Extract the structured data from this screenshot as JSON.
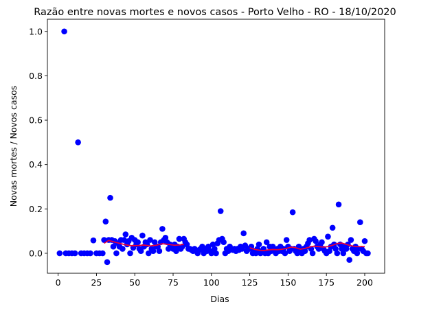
{
  "chart_data": {
    "type": "scatter",
    "title": "Razão entre novas mortes e novos casos - Porto Velho - RO - 18/10/2020",
    "xlabel": "Dias",
    "ylabel": "Novas mortes / Novos casos",
    "xlim": [
      -7,
      213
    ],
    "ylim": [
      -0.09,
      1.055
    ],
    "xticks": [
      0,
      25,
      50,
      75,
      100,
      125,
      150,
      175,
      200
    ],
    "yticks": [
      0.0,
      0.2,
      0.4,
      0.6,
      0.8,
      1.0
    ],
    "ytick_labels": [
      "0.0",
      "0.2",
      "0.4",
      "0.6",
      "0.8",
      "1.0"
    ],
    "grid": false,
    "scatter_color": "#0000ff",
    "line_color": "#e8003a",
    "series": [
      {
        "kind": "scatter",
        "points": [
          [
            1,
            0
          ],
          [
            4,
            1.0
          ],
          [
            5,
            0
          ],
          [
            7,
            0
          ],
          [
            9,
            0
          ],
          [
            11,
            0
          ],
          [
            13,
            0.5
          ],
          [
            15,
            0
          ],
          [
            17,
            0
          ],
          [
            19,
            0
          ],
          [
            21,
            0
          ],
          [
            23,
            0.058
          ],
          [
            25,
            0
          ],
          [
            27,
            0
          ],
          [
            29,
            0
          ],
          [
            30,
            0.06
          ],
          [
            31,
            0.143
          ],
          [
            32,
            -0.04
          ],
          [
            33,
            0.06
          ],
          [
            34,
            0.25
          ],
          [
            35,
            0.06
          ],
          [
            36,
            0.03
          ],
          [
            37,
            0.055
          ],
          [
            38,
            0.0
          ],
          [
            39,
            0.045
          ],
          [
            40,
            0.03
          ],
          [
            41,
            0.06
          ],
          [
            42,
            0.02
          ],
          [
            43,
            0.06
          ],
          [
            44,
            0.085
          ],
          [
            45,
            0.04
          ],
          [
            46,
            0.055
          ],
          [
            47,
            0.0
          ],
          [
            48,
            0.07
          ],
          [
            49,
            0.025
          ],
          [
            50,
            0.06
          ],
          [
            51,
            0.04
          ],
          [
            52,
            0.05
          ],
          [
            53,
            0.02
          ],
          [
            54,
            0.01
          ],
          [
            55,
            0.08
          ],
          [
            56,
            0.03
          ],
          [
            57,
            0.05
          ],
          [
            58,
            0.04
          ],
          [
            59,
            0.0
          ],
          [
            60,
            0.06
          ],
          [
            61,
            0.02
          ],
          [
            62,
            0.01
          ],
          [
            63,
            0.05
          ],
          [
            64,
            0.03
          ],
          [
            65,
            0.03
          ],
          [
            66,
            0.01
          ],
          [
            67,
            0.05
          ],
          [
            68,
            0.11
          ],
          [
            69,
            0.06
          ],
          [
            70,
            0.07
          ],
          [
            71,
            0.05
          ],
          [
            72,
            0.02
          ],
          [
            73,
            0.04
          ],
          [
            74,
            0.03
          ],
          [
            75,
            0.02
          ],
          [
            76,
            0.04
          ],
          [
            77,
            0.01
          ],
          [
            78,
            0.03
          ],
          [
            79,
            0.065
          ],
          [
            80,
            0.02
          ],
          [
            81,
            0.03
          ],
          [
            82,
            0.065
          ],
          [
            83,
            0.05
          ],
          [
            84,
            0.04
          ],
          [
            85,
            0.02
          ],
          [
            86,
            0.02
          ],
          [
            87,
            0.015
          ],
          [
            88,
            0.01
          ],
          [
            89,
            0.02
          ],
          [
            90,
            0.01
          ],
          [
            91,
            0.0
          ],
          [
            92,
            0.015
          ],
          [
            93,
            0.02
          ],
          [
            94,
            0.03
          ],
          [
            95,
            0.0
          ],
          [
            96,
            0.02
          ],
          [
            97,
            0.01
          ],
          [
            98,
            0.03
          ],
          [
            99,
            0.01
          ],
          [
            100,
            0.0
          ],
          [
            101,
            0.04
          ],
          [
            102,
            0.02
          ],
          [
            103,
            0.0
          ],
          [
            104,
            0.045
          ],
          [
            105,
            0.06
          ],
          [
            106,
            0.19
          ],
          [
            107,
            0.065
          ],
          [
            108,
            0.05
          ],
          [
            109,
            0.0
          ],
          [
            110,
            0.02
          ],
          [
            111,
            0.01
          ],
          [
            112,
            0.03
          ],
          [
            113,
            0.02
          ],
          [
            114,
            0.015
          ],
          [
            115,
            0.02
          ],
          [
            116,
            0.01
          ],
          [
            117,
            0.02
          ],
          [
            118,
            0.015
          ],
          [
            119,
            0.03
          ],
          [
            120,
            0.02
          ],
          [
            121,
            0.09
          ],
          [
            122,
            0.035
          ],
          [
            123,
            0.01
          ],
          [
            124,
            0.02
          ],
          [
            125,
            0.02
          ],
          [
            126,
            0.03
          ],
          [
            127,
            0.0
          ],
          [
            128,
            0.01
          ],
          [
            129,
            0.0
          ],
          [
            130,
            0.02
          ],
          [
            131,
            0.04
          ],
          [
            132,
            0.0
          ],
          [
            133,
            0.01
          ],
          [
            134,
            0.02
          ],
          [
            135,
            0.0
          ],
          [
            136,
            0.05
          ],
          [
            137,
            0.0
          ],
          [
            138,
            0.03
          ],
          [
            139,
            0.01
          ],
          [
            140,
            0.03
          ],
          [
            141,
            0.02
          ],
          [
            142,
            0.0
          ],
          [
            143,
            0.02
          ],
          [
            144,
            0.01
          ],
          [
            145,
            0.03
          ],
          [
            146,
            0.01
          ],
          [
            147,
            0.02
          ],
          [
            148,
            0.0
          ],
          [
            149,
            0.06
          ],
          [
            150,
            0.03
          ],
          [
            151,
            0.01
          ],
          [
            152,
            0.02
          ],
          [
            153,
            0.185
          ],
          [
            154,
            0.02
          ],
          [
            155,
            0.01
          ],
          [
            156,
            0.0
          ],
          [
            157,
            0.03
          ],
          [
            158,
            0.01
          ],
          [
            159,
            0.0
          ],
          [
            160,
            0.02
          ],
          [
            161,
            0.01
          ],
          [
            162,
            0.03
          ],
          [
            163,
            0.045
          ],
          [
            164,
            0.06
          ],
          [
            165,
            0.02
          ],
          [
            166,
            0.0
          ],
          [
            167,
            0.065
          ],
          [
            168,
            0.055
          ],
          [
            169,
            0.03
          ],
          [
            170,
            0.02
          ],
          [
            171,
            0.04
          ],
          [
            172,
            0.05
          ],
          [
            173,
            0.02
          ],
          [
            174,
            0.01
          ],
          [
            175,
            0.0
          ],
          [
            176,
            0.075
          ],
          [
            177,
            0.01
          ],
          [
            178,
            0.03
          ],
          [
            179,
            0.115
          ],
          [
            180,
            0.04
          ],
          [
            181,
            0.02
          ],
          [
            182,
            0.0
          ],
          [
            183,
            0.22
          ],
          [
            184,
            0.04
          ],
          [
            185,
            0.02
          ],
          [
            186,
            0.0
          ],
          [
            187,
            0.03
          ],
          [
            188,
            0.02
          ],
          [
            189,
            0.04
          ],
          [
            190,
            -0.03
          ],
          [
            191,
            0.06
          ],
          [
            192,
            0.02
          ],
          [
            193,
            0.01
          ],
          [
            194,
            0.03
          ],
          [
            195,
            0.0
          ],
          [
            196,
            0.02
          ],
          [
            197,
            0.14
          ],
          [
            198,
            0.02
          ],
          [
            199,
            0.01
          ],
          [
            200,
            0.055
          ],
          [
            201,
            0.0
          ],
          [
            202,
            0.0
          ]
        ]
      },
      {
        "kind": "line",
        "points": [
          [
            30,
            0.045
          ],
          [
            33,
            0.058
          ],
          [
            36,
            0.052
          ],
          [
            40,
            0.045
          ],
          [
            44,
            0.038
          ],
          [
            48,
            0.034
          ],
          [
            52,
            0.035
          ],
          [
            56,
            0.037
          ],
          [
            60,
            0.033
          ],
          [
            64,
            0.036
          ],
          [
            68,
            0.043
          ],
          [
            72,
            0.04
          ],
          [
            76,
            0.036
          ],
          [
            80,
            0.038
          ],
          [
            82,
            0.04
          ],
          [
            125,
            0.025
          ],
          [
            128,
            0.018
          ],
          [
            131,
            0.014
          ],
          [
            134,
            0.012
          ],
          [
            137,
            0.015
          ],
          [
            140,
            0.017
          ],
          [
            143,
            0.016
          ],
          [
            146,
            0.018
          ],
          [
            149,
            0.022
          ],
          [
            152,
            0.028
          ],
          [
            155,
            0.025
          ],
          [
            158,
            0.018
          ],
          [
            161,
            0.022
          ],
          [
            164,
            0.028
          ],
          [
            167,
            0.032
          ],
          [
            170,
            0.03
          ],
          [
            173,
            0.028
          ],
          [
            176,
            0.03
          ],
          [
            179,
            0.036
          ],
          [
            182,
            0.044
          ],
          [
            185,
            0.046
          ],
          [
            188,
            0.04
          ],
          [
            191,
            0.034
          ],
          [
            194,
            0.03
          ],
          [
            197,
            0.03
          ],
          [
            200,
            0.03
          ]
        ]
      }
    ]
  }
}
